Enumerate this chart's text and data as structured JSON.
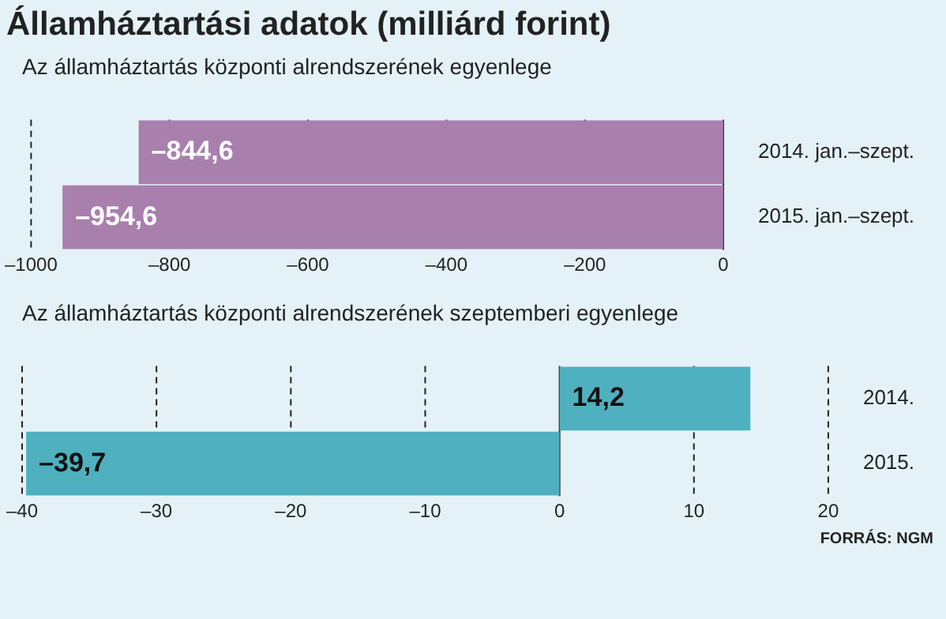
{
  "chart_data": [
    {
      "type": "bar",
      "orientation": "horizontal",
      "title": "Államháztartási adatok (milliárd forint)",
      "subtitle": "Az államháztartás központi alrendszerének egyenlege",
      "categories": [
        "2014. jan.–szept.",
        "2015. jan.–szept."
      ],
      "values": [
        -844.6,
        -954.6
      ],
      "value_labels": [
        "–844,6",
        "–954,6"
      ],
      "color": "#a97fae",
      "xlim": [
        -1000,
        0
      ],
      "xticks": [
        {
          "value": -1000,
          "label": "–1000"
        },
        {
          "value": -800,
          "label": "–800"
        },
        {
          "value": -600,
          "label": "–600"
        },
        {
          "value": -400,
          "label": "–400"
        },
        {
          "value": -200,
          "label": "–200"
        },
        0
      ],
      "grid": "x",
      "legend": false
    },
    {
      "type": "bar",
      "orientation": "horizontal",
      "title": "Az államháztartás központi alrendszerének szeptemberi egyenlege",
      "categories": [
        "2014.",
        "2015."
      ],
      "values": [
        14.2,
        -39.7
      ],
      "value_labels": [
        "14,2",
        "–39,7"
      ],
      "color": "#4fb0bf",
      "xlim": [
        -40,
        20
      ],
      "xticks": [
        {
          "value": -40,
          "label": "–40"
        },
        {
          "value": -30,
          "label": "–30"
        },
        {
          "value": -20,
          "label": "–20"
        },
        {
          "value": -10,
          "label": "–10"
        },
        0,
        10,
        20
      ],
      "grid": "x",
      "legend": false,
      "annotations": [
        "FORRÁS: NGM"
      ]
    }
  ]
}
